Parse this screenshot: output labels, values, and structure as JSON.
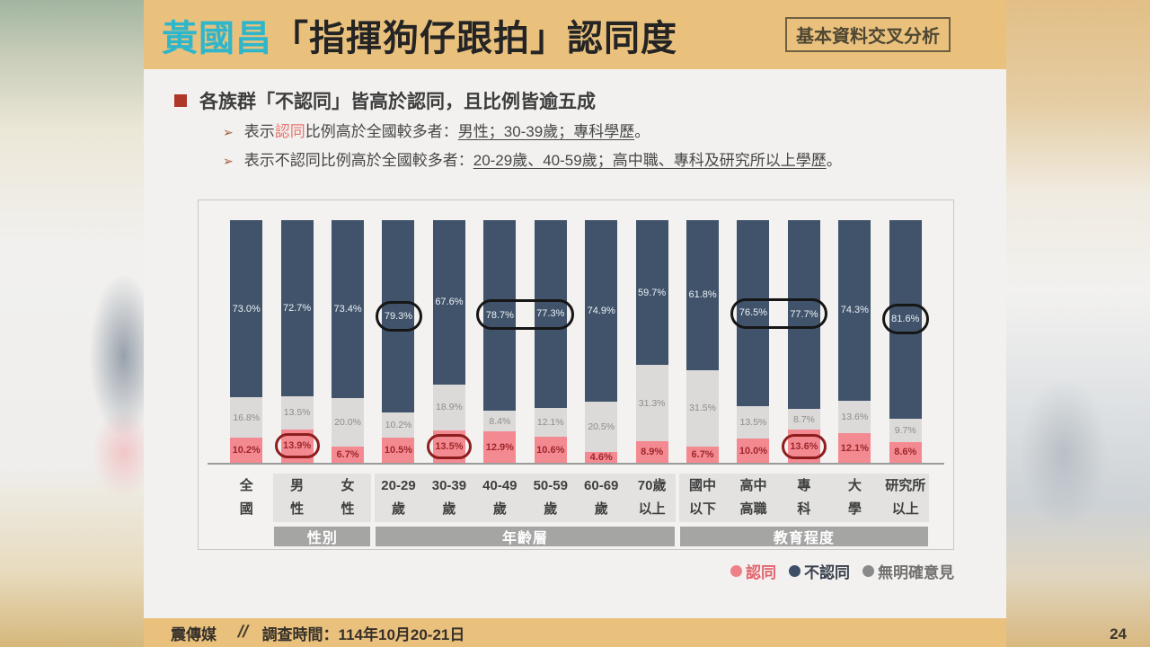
{
  "page": {
    "number": "24"
  },
  "header": {
    "title_highlight": "黃國昌",
    "title_rest": "「指揮狗仔跟拍」認同度",
    "badge": "基本資料交叉分析"
  },
  "summary": {
    "headline": "各族群「不認同」皆高於認同，且比例皆逾五成",
    "arrow_glyph": "➢",
    "bullets": [
      [
        {
          "t": "表示"
        },
        {
          "t": "認同",
          "style": "red"
        },
        {
          "t": "比例高於全國較多者："
        },
        {
          "t": "男性；30-39歲；專科學歷",
          "style": "underline"
        },
        {
          "t": "。"
        }
      ],
      [
        {
          "t": "表示不認同比例高於全國較多者："
        },
        {
          "t": "20-29歲、40-59歲；高中職、專科及研究所以上學歷",
          "style": "underline"
        },
        {
          "t": "。"
        }
      ]
    ]
  },
  "chart_data": {
    "type": "stacked-bar-100",
    "unit": "%",
    "title": "黃國昌「指揮狗仔跟拍」認同度 基本資料交叉分析",
    "series": [
      {
        "key": "agree",
        "name": "認同",
        "color": "#f48a91",
        "label_color": "#9e262c"
      },
      {
        "key": "none",
        "name": "無明確意見",
        "color": "#dbdad8",
        "label_color": "#8c8c8c"
      },
      {
        "key": "disagree",
        "name": "不認同",
        "color": "#40536a",
        "label_color": "#edf1f7"
      }
    ],
    "bars": [
      {
        "label_lines": [
          "全",
          "國"
        ],
        "agree": 10.2,
        "none": 16.8,
        "disagree": 73.0
      },
      {
        "label_lines": [
          "男",
          "性"
        ],
        "agree": 13.9,
        "none": 13.5,
        "disagree": 72.7
      },
      {
        "label_lines": [
          "女",
          "性"
        ],
        "agree": 6.7,
        "none": 20.0,
        "disagree": 73.4
      },
      {
        "label_lines": [
          "20-29",
          "歲"
        ],
        "agree": 10.5,
        "none": 10.2,
        "disagree": 79.3
      },
      {
        "label_lines": [
          "30-39",
          "歲"
        ],
        "agree": 13.5,
        "none": 18.9,
        "disagree": 67.6
      },
      {
        "label_lines": [
          "40-49",
          "歲"
        ],
        "agree": 12.9,
        "none": 8.4,
        "disagree": 78.7
      },
      {
        "label_lines": [
          "50-59",
          "歲"
        ],
        "agree": 10.6,
        "none": 12.1,
        "disagree": 77.3
      },
      {
        "label_lines": [
          "60-69",
          "歲"
        ],
        "agree": 4.6,
        "none": 20.5,
        "disagree": 74.9
      },
      {
        "label_lines": [
          "70歲",
          "以上"
        ],
        "agree": 8.9,
        "none": 31.3,
        "disagree": 59.7
      },
      {
        "label_lines": [
          "國中",
          "以下"
        ],
        "agree": 6.7,
        "none": 31.5,
        "disagree": 61.8
      },
      {
        "label_lines": [
          "高中",
          "高職"
        ],
        "agree": 10.0,
        "none": 13.5,
        "disagree": 76.5
      },
      {
        "label_lines": [
          "專",
          "科"
        ],
        "agree": 13.6,
        "none": 8.7,
        "disagree": 77.7
      },
      {
        "label_lines": [
          "大",
          "學"
        ],
        "agree": 12.1,
        "none": 13.6,
        "disagree": 74.3
      },
      {
        "label_lines": [
          "研究所",
          "以上"
        ],
        "agree": 8.6,
        "none": 9.7,
        "disagree": 81.6
      }
    ],
    "groups": [
      {
        "label": "性別",
        "start": 1,
        "end": 2
      },
      {
        "label": "年齡層",
        "start": 3,
        "end": 8
      },
      {
        "label": "教育程度",
        "start": 9,
        "end": 13
      }
    ],
    "legend": [
      {
        "name": "認同",
        "color": "#ef8088",
        "text_color": "#e2636d"
      },
      {
        "name": "不認同",
        "color": "#3c4f66",
        "text_color": "#39404d"
      },
      {
        "name": "無明確意見",
        "color": "#8a8a8a",
        "text_color": "#71706f"
      }
    ],
    "annotations": {
      "disagree_ovals": [
        [
          3
        ],
        [
          5,
          6
        ],
        [
          10,
          11
        ],
        [
          13
        ]
      ],
      "agree_ovals": [
        [
          1
        ],
        [
          4
        ],
        [
          11
        ]
      ]
    },
    "axis": {
      "ymin": 0,
      "ymax": 100,
      "grid": false,
      "legend_position": "bottom-right"
    }
  },
  "footer": {
    "brand": "震傳媒",
    "divider": "//",
    "survey_time": "調查時間：114年10月20-21日"
  }
}
